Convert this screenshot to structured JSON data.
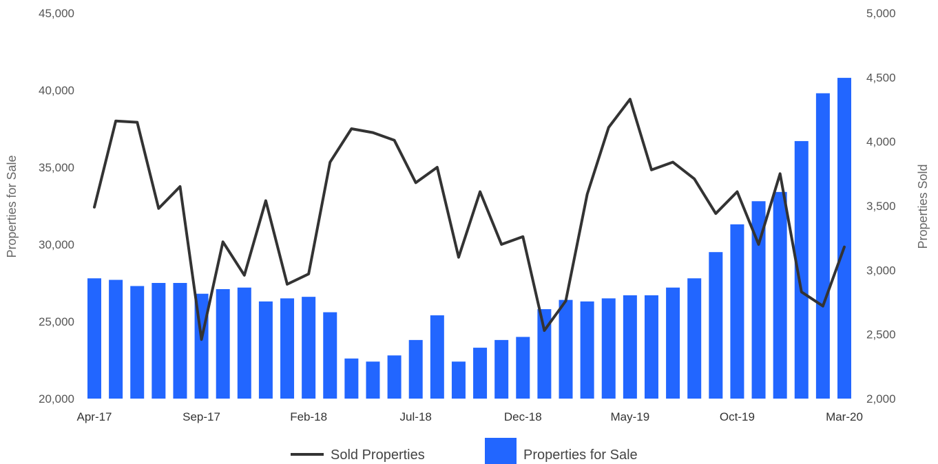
{
  "chart_data": {
    "type": "bar",
    "categories": [
      "Apr-17",
      "May-17",
      "Jun-17",
      "Jul-17",
      "Aug-17",
      "Sep-17",
      "Oct-17",
      "Nov-17",
      "Dec-17",
      "Jan-18",
      "Feb-18",
      "Mar-18",
      "Apr-18",
      "May-18",
      "Jun-18",
      "Jul-18",
      "Aug-18",
      "Sep-18",
      "Oct-18",
      "Nov-18",
      "Dec-18",
      "Jan-19",
      "Feb-19",
      "Mar-19",
      "Apr-19",
      "May-19",
      "Jun-19",
      "Jul-19",
      "Aug-19",
      "Sep-19",
      "Oct-19",
      "Nov-19",
      "Dec-19",
      "Jan-20",
      "Feb-20",
      "Mar-20"
    ],
    "x_tick_labels": [
      "Apr-17",
      "Sep-17",
      "Feb-18",
      "Jul-18",
      "Dec-18",
      "May-19",
      "Oct-19",
      "Mar-20"
    ],
    "series": [
      {
        "name": "Properties for Sale",
        "type": "bar",
        "axis": "left",
        "color": "#2266ff",
        "values": [
          27800,
          27700,
          27300,
          27500,
          27500,
          26800,
          27100,
          27200,
          26300,
          26500,
          26600,
          25600,
          22600,
          22400,
          22800,
          23800,
          25400,
          22400,
          23300,
          23800,
          24000,
          25800,
          26400,
          26300,
          26500,
          26700,
          26700,
          27200,
          27800,
          29500,
          31300,
          32800,
          33400,
          36700,
          39800,
          40800
        ]
      },
      {
        "name": "Sold Properties",
        "type": "line",
        "axis": "right",
        "color": "#333333",
        "values": [
          3490,
          4160,
          4150,
          3480,
          3650,
          2460,
          3220,
          2960,
          3540,
          2890,
          2970,
          3840,
          4100,
          4070,
          4010,
          3680,
          3800,
          3100,
          3610,
          3200,
          3260,
          2530,
          2760,
          3590,
          4110,
          4330,
          3780,
          3840,
          3710,
          3440,
          3610,
          3200,
          3750,
          2830,
          2720,
          3180
        ]
      }
    ],
    "y_left": {
      "label": "Properties for Sale",
      "ylim": [
        20000,
        45000
      ],
      "ticks": [
        "20,000",
        "25,000",
        "30,000",
        "35,000",
        "40,000",
        "45,000"
      ]
    },
    "y_right": {
      "label": "Properties Sold",
      "ylim": [
        2000,
        5000
      ],
      "ticks": [
        "2,000",
        "2,500",
        "3,000",
        "3,500",
        "4,000",
        "4,500",
        "5,000"
      ]
    },
    "title": "",
    "xlabel": "",
    "grid": false,
    "legend": {
      "position": "bottom",
      "items": [
        "Sold Properties",
        "Properties for Sale"
      ]
    }
  }
}
